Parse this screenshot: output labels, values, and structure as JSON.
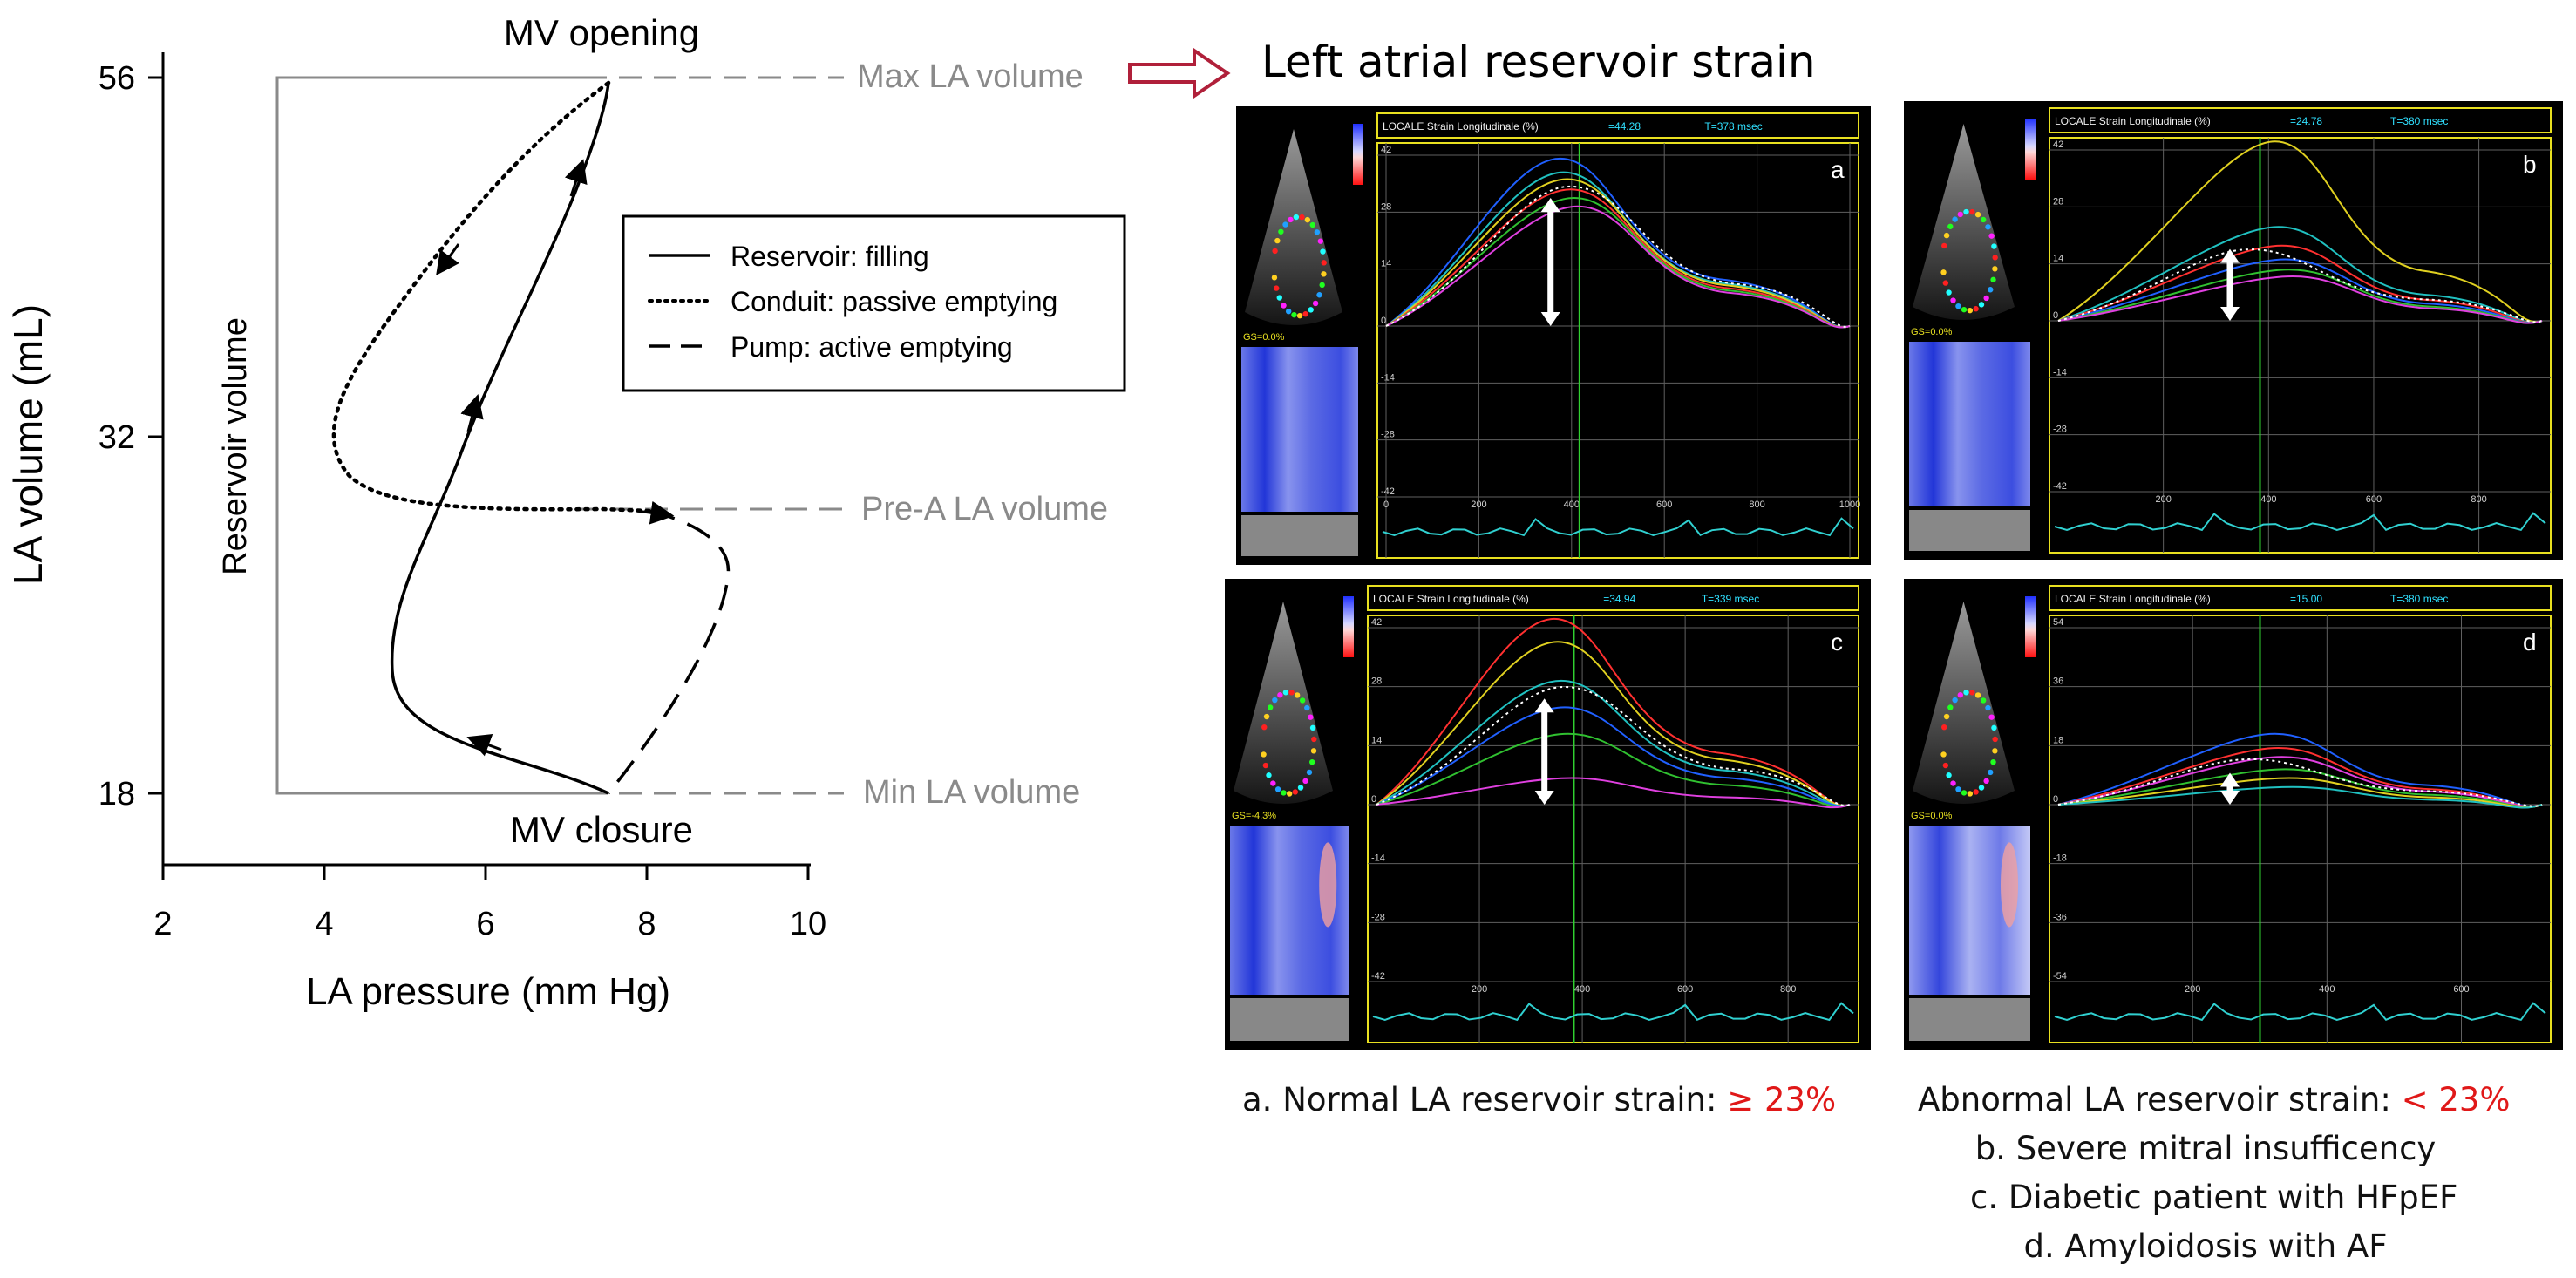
{
  "pv_loop": {
    "y_axis_label": "LA volume (mL)",
    "x_axis_label": "LA pressure (mm Hg)",
    "y_ticks": [
      "56",
      "32",
      "18"
    ],
    "x_ticks": [
      "2",
      "4",
      "6",
      "8",
      "10"
    ],
    "annotations": {
      "mv_opening": "MV opening",
      "mv_closure": "MV closure",
      "reservoir_volume": "Reservoir volume",
      "max_la_volume": "Max LA volume",
      "pre_a_la_volume": "Pre-A LA volume",
      "min_la_volume": "Min LA volume"
    },
    "legend": [
      {
        "style": "solid",
        "label": "Reservoir: filling"
      },
      {
        "style": "dotted",
        "label": "Conduit: passive emptying"
      },
      {
        "style": "dashed",
        "label": "Pump: active emptying"
      }
    ]
  },
  "right": {
    "title": "Left atrial reservoir strain",
    "panels": [
      {
        "letter": "a",
        "header": "LOCALE",
        "sub": "Strain Longitudinale (%)",
        "val": "=44.28",
        "t": "T=378 msec",
        "gs": "GS=0.0%",
        "yticks": [
          "42",
          "28",
          "14",
          "0",
          "-14",
          "-28",
          "-42"
        ],
        "xticks": [
          "0",
          "200",
          "400",
          "600",
          "800",
          "1000"
        ]
      },
      {
        "letter": "b",
        "header": "LOCALE",
        "sub": "Strain Longitudinale (%)",
        "val": "=24.78",
        "t": "T=380 msec",
        "gs": "GS=0.0%",
        "yticks": [
          "42",
          "28",
          "14",
          "0",
          "-14",
          "-28",
          "-42"
        ],
        "xticks": [
          "200",
          "400",
          "600",
          "800"
        ]
      },
      {
        "letter": "c",
        "header": "LOCALE",
        "sub": "Strain Longitudinale (%)",
        "val": "=34.94",
        "t": "T=339 msec",
        "gs": "GS=-4.3%",
        "yticks": [
          "42",
          "28",
          "14",
          "0",
          "-14",
          "-28",
          "-42"
        ],
        "xticks": [
          "200",
          "400",
          "600",
          "800"
        ]
      },
      {
        "letter": "d",
        "header": "LOCALE",
        "sub": "Strain Longitudinale (%)",
        "val": "=15.00",
        "t": "T=380 msec",
        "gs": "GS=0.0%",
        "yticks": [
          "54",
          "36",
          "18",
          "0",
          "-18",
          "-36",
          "-54"
        ],
        "xticks": [
          "200",
          "400",
          "600"
        ]
      }
    ],
    "caption_normal_prefix": "a. Normal LA reservoir strain: ",
    "caption_normal_value": "≥ 23%",
    "caption_abnormal_prefix": "Abnormal LA reservoir strain: ",
    "caption_abnormal_value": "< 23%",
    "caption_b": "b. Severe mitral insufficency",
    "caption_c": "c. Diabetic patient with HFpEF",
    "caption_d": "d. Amyloidosis with AF"
  }
}
